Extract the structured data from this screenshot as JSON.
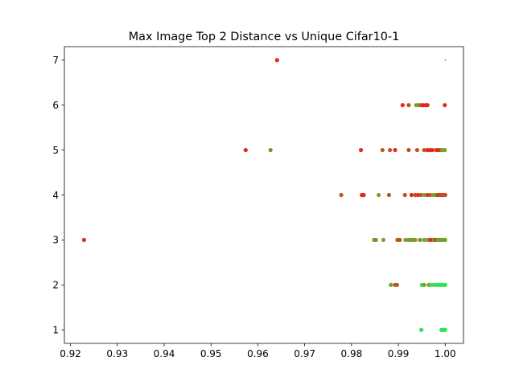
{
  "chart_data": {
    "type": "scatter",
    "title": "Max Image Top 2 Distance vs Unique Cifar10-1",
    "xlabel": "",
    "ylabel": "",
    "xlim": [
      0.9187,
      1.0039
    ],
    "ylim": [
      0.7,
      7.3
    ],
    "xticks": [
      "0.92",
      "0.93",
      "0.94",
      "0.95",
      "0.96",
      "0.97",
      "0.98",
      "0.99",
      "1.00"
    ],
    "yticks": [
      "1",
      "2",
      "3",
      "4",
      "5",
      "6",
      "7"
    ],
    "grid": false,
    "legend": "none",
    "points": [
      {
        "x": 0.9641,
        "y": 7,
        "color": "#e8261a"
      },
      {
        "x": 1.0,
        "y": 7,
        "color": "#000000"
      },
      {
        "x": 0.9909,
        "y": 6,
        "color": "#e8261a"
      },
      {
        "x": 0.9922,
        "y": 6,
        "color": "#c0501a"
      },
      {
        "x": 0.9938,
        "y": 6,
        "color": "#6ea62c"
      },
      {
        "x": 0.9943,
        "y": 6,
        "color": "#6ea62c"
      },
      {
        "x": 0.9948,
        "y": 6,
        "color": "#c0501a"
      },
      {
        "x": 0.9953,
        "y": 6,
        "color": "#e8261a"
      },
      {
        "x": 0.9958,
        "y": 6,
        "color": "#e8261a"
      },
      {
        "x": 0.9962,
        "y": 6,
        "color": "#e8261a"
      },
      {
        "x": 0.9999,
        "y": 6,
        "color": "#e8261a"
      },
      {
        "x": 0.9574,
        "y": 5,
        "color": "#e8261a"
      },
      {
        "x": 0.9627,
        "y": 5,
        "color": "#8b8a2a"
      },
      {
        "x": 0.982,
        "y": 5,
        "color": "#e8261a"
      },
      {
        "x": 0.9866,
        "y": 5,
        "color": "#b85a1c"
      },
      {
        "x": 0.9882,
        "y": 5,
        "color": "#b85a1c"
      },
      {
        "x": 0.9893,
        "y": 5,
        "color": "#e8261a"
      },
      {
        "x": 0.9922,
        "y": 5,
        "color": "#c0501a"
      },
      {
        "x": 0.994,
        "y": 5,
        "color": "#c0501a"
      },
      {
        "x": 0.9955,
        "y": 5,
        "color": "#b85a1c"
      },
      {
        "x": 0.9962,
        "y": 5,
        "color": "#e8261a"
      },
      {
        "x": 0.9967,
        "y": 5,
        "color": "#e8261a"
      },
      {
        "x": 0.9972,
        "y": 5,
        "color": "#e8261a"
      },
      {
        "x": 0.998,
        "y": 5,
        "color": "#c0501a"
      },
      {
        "x": 0.9984,
        "y": 5,
        "color": "#e8261a"
      },
      {
        "x": 0.9989,
        "y": 5,
        "color": "#e8261a"
      },
      {
        "x": 0.9993,
        "y": 5,
        "color": "#6ea62c"
      },
      {
        "x": 0.9996,
        "y": 5,
        "color": "#6ea62c"
      },
      {
        "x": 0.9999,
        "y": 5,
        "color": "#6ea62c"
      },
      {
        "x": 0.9778,
        "y": 4,
        "color": "#b85a1c"
      },
      {
        "x": 0.9822,
        "y": 4,
        "color": "#e8261a"
      },
      {
        "x": 0.9826,
        "y": 4,
        "color": "#e8261a"
      },
      {
        "x": 0.9858,
        "y": 4,
        "color": "#6ea62c"
      },
      {
        "x": 0.988,
        "y": 4,
        "color": "#b85a1c"
      },
      {
        "x": 0.9914,
        "y": 4,
        "color": "#c0501a"
      },
      {
        "x": 0.9928,
        "y": 4,
        "color": "#e8261a"
      },
      {
        "x": 0.9936,
        "y": 4,
        "color": "#c0501a"
      },
      {
        "x": 0.9942,
        "y": 4,
        "color": "#e8261a"
      },
      {
        "x": 0.9948,
        "y": 4,
        "color": "#c0501a"
      },
      {
        "x": 0.9955,
        "y": 4,
        "color": "#6ea62c"
      },
      {
        "x": 0.9962,
        "y": 4,
        "color": "#e8261a"
      },
      {
        "x": 0.9968,
        "y": 4,
        "color": "#c0501a"
      },
      {
        "x": 0.9975,
        "y": 4,
        "color": "#6ea62c"
      },
      {
        "x": 0.998,
        "y": 4,
        "color": "#6ea62c"
      },
      {
        "x": 0.9984,
        "y": 4,
        "color": "#e8261a"
      },
      {
        "x": 0.9988,
        "y": 4,
        "color": "#c0501a"
      },
      {
        "x": 0.9991,
        "y": 4,
        "color": "#c0501a"
      },
      {
        "x": 0.9994,
        "y": 4,
        "color": "#c0501a"
      },
      {
        "x": 0.9997,
        "y": 4,
        "color": "#c0501a"
      },
      {
        "x": 1.0,
        "y": 4,
        "color": "#c0501a"
      },
      {
        "x": 0.9229,
        "y": 3,
        "color": "#e8261a"
      },
      {
        "x": 0.9848,
        "y": 3,
        "color": "#6ea62c"
      },
      {
        "x": 0.9852,
        "y": 3,
        "color": "#8b8a2a"
      },
      {
        "x": 0.9868,
        "y": 3,
        "color": "#6ea62c"
      },
      {
        "x": 0.9898,
        "y": 3,
        "color": "#c0501a"
      },
      {
        "x": 0.9903,
        "y": 3,
        "color": "#c0501a"
      },
      {
        "x": 0.9915,
        "y": 3,
        "color": "#6ea62c"
      },
      {
        "x": 0.9921,
        "y": 3,
        "color": "#6ea62c"
      },
      {
        "x": 0.9926,
        "y": 3,
        "color": "#6ea62c"
      },
      {
        "x": 0.9931,
        "y": 3,
        "color": "#8b8a2a"
      },
      {
        "x": 0.9936,
        "y": 3,
        "color": "#6ea62c"
      },
      {
        "x": 0.9946,
        "y": 3,
        "color": "#8b8a2a"
      },
      {
        "x": 0.9955,
        "y": 3,
        "color": "#6ea62c"
      },
      {
        "x": 0.9962,
        "y": 3,
        "color": "#6ea62c"
      },
      {
        "x": 0.9968,
        "y": 3,
        "color": "#e8261a"
      },
      {
        "x": 0.9972,
        "y": 3,
        "color": "#e8261a"
      },
      {
        "x": 0.9976,
        "y": 3,
        "color": "#6ea62c"
      },
      {
        "x": 0.998,
        "y": 3,
        "color": "#e8261a"
      },
      {
        "x": 0.9984,
        "y": 3,
        "color": "#6ea62c"
      },
      {
        "x": 0.9988,
        "y": 3,
        "color": "#6ea62c"
      },
      {
        "x": 0.9992,
        "y": 3,
        "color": "#6ea62c"
      },
      {
        "x": 0.9995,
        "y": 3,
        "color": "#6ea62c"
      },
      {
        "x": 0.9998,
        "y": 3,
        "color": "#6ea62c"
      },
      {
        "x": 1.0,
        "y": 3,
        "color": "#6ea62c"
      },
      {
        "x": 0.9884,
        "y": 2,
        "color": "#6ea62c"
      },
      {
        "x": 0.9893,
        "y": 2,
        "color": "#b85a1c"
      },
      {
        "x": 0.9897,
        "y": 2,
        "color": "#b85a1c"
      },
      {
        "x": 0.995,
        "y": 2,
        "color": "#2ce65a"
      },
      {
        "x": 0.9955,
        "y": 2,
        "color": "#6ea62c"
      },
      {
        "x": 0.9965,
        "y": 2,
        "color": "#6ea62c"
      },
      {
        "x": 0.997,
        "y": 2,
        "color": "#5cd04a"
      },
      {
        "x": 0.9975,
        "y": 2,
        "color": "#2ce65a"
      },
      {
        "x": 0.998,
        "y": 2,
        "color": "#5cd04a"
      },
      {
        "x": 0.9984,
        "y": 2,
        "color": "#2ce65a"
      },
      {
        "x": 0.9988,
        "y": 2,
        "color": "#2ce65a"
      },
      {
        "x": 0.9991,
        "y": 2,
        "color": "#2ce65a"
      },
      {
        "x": 0.9994,
        "y": 2,
        "color": "#2ce65a"
      },
      {
        "x": 0.9997,
        "y": 2,
        "color": "#2ce65a"
      },
      {
        "x": 1.0,
        "y": 2,
        "color": "#2ce65a"
      },
      {
        "x": 0.9949,
        "y": 1,
        "color": "#2ce65a"
      },
      {
        "x": 0.9992,
        "y": 1,
        "color": "#2ce65a"
      },
      {
        "x": 0.9995,
        "y": 1,
        "color": "#2ce65a"
      },
      {
        "x": 0.9998,
        "y": 1,
        "color": "#2ce65a"
      },
      {
        "x": 1.0,
        "y": 1,
        "color": "#2ce65a"
      }
    ]
  }
}
